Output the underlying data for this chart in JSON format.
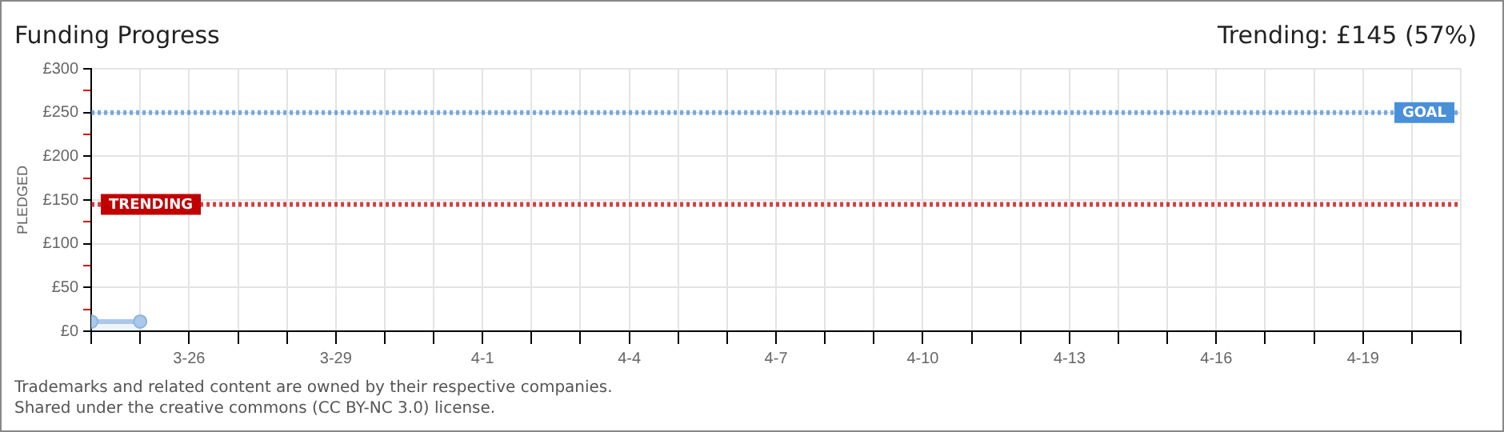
{
  "chart_data": {
    "type": "area",
    "title": "Funding Progress",
    "ylabel": "PLEDGED",
    "annotations": [
      "Trending: £145 (57%)",
      "Trademarks and related content are owned by their respective companies.",
      "Shared under the creative commons (CC BY-NC 3.0) license."
    ],
    "series": [
      {
        "color": "#a9c8ea",
        "x": [
          "--03-24",
          "--03-25"
        ],
        "values": [
          11,
          11
        ]
      }
    ],
    "xlim": [
      "--03-24",
      "--04-21"
    ],
    "xticks": [
      {
        "value": "--03-24",
        "label": null
      },
      {
        "value": "--03-25",
        "label": null
      },
      {
        "value": "--03-26",
        "label": "3-26"
      },
      {
        "value": "--03-27",
        "label": null
      },
      {
        "value": "--03-28",
        "label": null
      },
      {
        "value": "--03-29",
        "label": "3-29"
      },
      {
        "value": "--03-30",
        "label": null
      },
      {
        "value": "--03-31",
        "label": null
      },
      {
        "value": "--04-01",
        "label": "4-1"
      },
      {
        "value": "--04-02",
        "label": null
      },
      {
        "value": "--04-03",
        "label": null
      },
      {
        "value": "--04-04",
        "label": "4-4"
      },
      {
        "value": "--04-05",
        "label": null
      },
      {
        "value": "--04-06",
        "label": null
      },
      {
        "value": "--04-07",
        "label": "4-7"
      },
      {
        "value": "--04-08",
        "label": null
      },
      {
        "value": "--04-09",
        "label": null
      },
      {
        "value": "--04-10",
        "label": "4-10"
      },
      {
        "value": "--04-11",
        "label": null
      },
      {
        "value": "--04-12",
        "label": null
      },
      {
        "value": "--04-13",
        "label": "4-13"
      },
      {
        "value": "--04-14",
        "label": null
      },
      {
        "value": "--04-15",
        "label": null
      },
      {
        "value": "--04-16",
        "label": "4-16"
      },
      {
        "value": "--04-17",
        "label": null
      },
      {
        "value": "--04-18",
        "label": null
      },
      {
        "value": "--04-19",
        "label": "4-19"
      },
      {
        "value": "--04-20",
        "label": null
      },
      {
        "value": "--04-21",
        "label": null
      }
    ],
    "ylim": [
      0,
      300
    ],
    "yticks": [
      {
        "value": 0,
        "label": "£0"
      },
      {
        "value": 25,
        "label": null
      },
      {
        "value": 50,
        "label": "£50"
      },
      {
        "value": 75,
        "label": null
      },
      {
        "value": 100,
        "label": "£100"
      },
      {
        "value": 125,
        "label": null
      },
      {
        "value": 150,
        "label": "£150"
      },
      {
        "value": 175,
        "label": null
      },
      {
        "value": 200,
        "label": "£200"
      },
      {
        "value": 225,
        "label": null
      },
      {
        "value": 250,
        "label": "£250"
      },
      {
        "value": 275,
        "label": null
      },
      {
        "value": 300,
        "label": "£300"
      }
    ],
    "ref_lines": [
      {
        "axis": "y",
        "value": 250,
        "label": "GOAL",
        "color": "#4a90d9",
        "line_style": "dotted"
      },
      {
        "axis": "y",
        "value": 145,
        "label": "TRENDING",
        "color": "#c00000",
        "line_style": "dotted"
      }
    ],
    "grid": true,
    "marker": "circle",
    "line_style": "solid",
    "legend": false
  }
}
